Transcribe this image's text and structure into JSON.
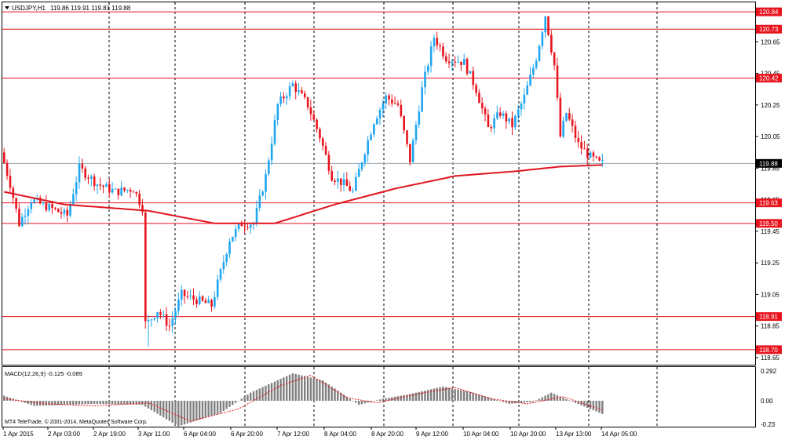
{
  "header": {
    "symbol_label": "USDJPY,H1",
    "ohlc": "119.86 119.91 119.81 119.88"
  },
  "macd_header": "MACD(12,26,9) -0.125 -0.089",
  "copyright": "MT4 TeleTrade, © 2001-2014, MetaQuotes Software Corp.",
  "colors": {
    "bull": "#1ea6f0",
    "bear": "#e8141e",
    "ma": "#e0141e",
    "hline": "#e8141e",
    "current_line": "#9aa8b2",
    "grid": "#000000",
    "macd_hist": "#7f7f7f",
    "macd_signal": "#e8141e"
  },
  "price_axis": {
    "ticks": [
      "120.65",
      "120.45",
      "120.25",
      "120.05",
      "119.85",
      "119.65",
      "119.45",
      "119.25",
      "119.05",
      "118.85",
      "118.65"
    ]
  },
  "horizontal_levels": [
    "120.84",
    "120.73",
    "120.42",
    "119.63",
    "119.50",
    "118.91",
    "118.70"
  ],
  "current_price": "119.88",
  "macd_axis": {
    "ticks": [
      "0.292",
      "0.00",
      "-0.23"
    ]
  },
  "time_axis": {
    "labels": [
      "1 Apr 2015",
      "2 Apr 03:00",
      "2 Apr 19:00",
      "3 Apr 11:00",
      "6 Apr 04:00",
      "6 Apr 20:00",
      "7 Apr 12:00",
      "8 Apr 04:00",
      "8 Apr 20:00",
      "9 Apr 12:00",
      "10 Apr 04:00",
      "10 Apr 20:00",
      "13 Apr 13:00",
      "14 Apr 05:00"
    ]
  },
  "chart_data": {
    "type": "candlestick",
    "symbol": "USDJPY",
    "timeframe": "H1",
    "ylim": [
      118.6,
      120.9
    ],
    "anchors": [
      {
        "i": 0,
        "p": 119.95
      },
      {
        "i": 3,
        "p": 119.75
      },
      {
        "i": 6,
        "p": 119.5
      },
      {
        "i": 10,
        "p": 119.65
      },
      {
        "i": 16,
        "p": 119.6
      },
      {
        "i": 22,
        "p": 119.55
      },
      {
        "i": 26,
        "p": 119.85
      },
      {
        "i": 32,
        "p": 119.75
      },
      {
        "i": 38,
        "p": 119.7
      },
      {
        "i": 44,
        "p": 119.72
      },
      {
        "i": 47,
        "p": 119.6
      },
      {
        "i": 48,
        "p": 118.85
      },
      {
        "i": 52,
        "p": 118.95
      },
      {
        "i": 56,
        "p": 118.85
      },
      {
        "i": 60,
        "p": 119.05
      },
      {
        "i": 70,
        "p": 118.98
      },
      {
        "i": 76,
        "p": 119.4
      },
      {
        "i": 80,
        "p": 119.5
      },
      {
        "i": 84,
        "p": 119.5
      },
      {
        "i": 88,
        "p": 119.8
      },
      {
        "i": 92,
        "p": 120.25
      },
      {
        "i": 97,
        "p": 120.38
      },
      {
        "i": 102,
        "p": 120.25
      },
      {
        "i": 106,
        "p": 120.05
      },
      {
        "i": 110,
        "p": 119.8
      },
      {
        "i": 114,
        "p": 119.75
      },
      {
        "i": 117,
        "p": 119.7
      },
      {
        "i": 120,
        "p": 119.9
      },
      {
        "i": 124,
        "p": 120.15
      },
      {
        "i": 128,
        "p": 120.3
      },
      {
        "i": 132,
        "p": 120.25
      },
      {
        "i": 136,
        "p": 119.9
      },
      {
        "i": 140,
        "p": 120.35
      },
      {
        "i": 144,
        "p": 120.68
      },
      {
        "i": 148,
        "p": 120.55
      },
      {
        "i": 154,
        "p": 120.52
      },
      {
        "i": 158,
        "p": 120.35
      },
      {
        "i": 162,
        "p": 120.1
      },
      {
        "i": 166,
        "p": 120.2
      },
      {
        "i": 170,
        "p": 120.12
      },
      {
        "i": 174,
        "p": 120.3
      },
      {
        "i": 178,
        "p": 120.55
      },
      {
        "i": 181,
        "p": 120.82
      },
      {
        "i": 184,
        "p": 120.5
      },
      {
        "i": 186,
        "p": 120.05
      },
      {
        "i": 188,
        "p": 120.2
      },
      {
        "i": 192,
        "p": 120.0
      },
      {
        "i": 196,
        "p": 119.92
      },
      {
        "i": 199,
        "p": 119.88
      }
    ],
    "moving_average": [
      {
        "i": 0,
        "p": 119.7
      },
      {
        "i": 20,
        "p": 119.62
      },
      {
        "i": 48,
        "p": 119.58
      },
      {
        "i": 70,
        "p": 119.5
      },
      {
        "i": 90,
        "p": 119.5
      },
      {
        "i": 110,
        "p": 119.62
      },
      {
        "i": 130,
        "p": 119.72
      },
      {
        "i": 150,
        "p": 119.8
      },
      {
        "i": 170,
        "p": 119.83
      },
      {
        "i": 185,
        "p": 119.86
      },
      {
        "i": 199,
        "p": 119.87
      }
    ],
    "macd_histogram": [
      {
        "i": 0,
        "v": 0.05
      },
      {
        "i": 10,
        "v": -0.05
      },
      {
        "i": 30,
        "v": -0.03
      },
      {
        "i": 46,
        "v": -0.04
      },
      {
        "i": 58,
        "v": -0.25
      },
      {
        "i": 72,
        "v": -0.12
      },
      {
        "i": 82,
        "v": 0.08
      },
      {
        "i": 96,
        "v": 0.27
      },
      {
        "i": 106,
        "v": 0.2
      },
      {
        "i": 118,
        "v": -0.04
      },
      {
        "i": 126,
        "v": 0.02
      },
      {
        "i": 134,
        "v": 0.06
      },
      {
        "i": 146,
        "v": 0.14
      },
      {
        "i": 156,
        "v": 0.08
      },
      {
        "i": 168,
        "v": -0.03
      },
      {
        "i": 176,
        "v": -0.01
      },
      {
        "i": 182,
        "v": 0.08
      },
      {
        "i": 190,
        "v": -0.02
      },
      {
        "i": 199,
        "v": -0.13
      }
    ],
    "macd_signal": [
      {
        "i": 0,
        "v": 0.02
      },
      {
        "i": 14,
        "v": -0.03
      },
      {
        "i": 30,
        "v": -0.05
      },
      {
        "i": 48,
        "v": -0.02
      },
      {
        "i": 62,
        "v": -0.2
      },
      {
        "i": 78,
        "v": -0.08
      },
      {
        "i": 92,
        "v": 0.15
      },
      {
        "i": 102,
        "v": 0.25
      },
      {
        "i": 114,
        "v": 0.03
      },
      {
        "i": 124,
        "v": -0.02
      },
      {
        "i": 138,
        "v": 0.07
      },
      {
        "i": 150,
        "v": 0.13
      },
      {
        "i": 162,
        "v": 0.02
      },
      {
        "i": 174,
        "v": -0.03
      },
      {
        "i": 186,
        "v": 0.04
      },
      {
        "i": 199,
        "v": -0.09
      }
    ]
  }
}
